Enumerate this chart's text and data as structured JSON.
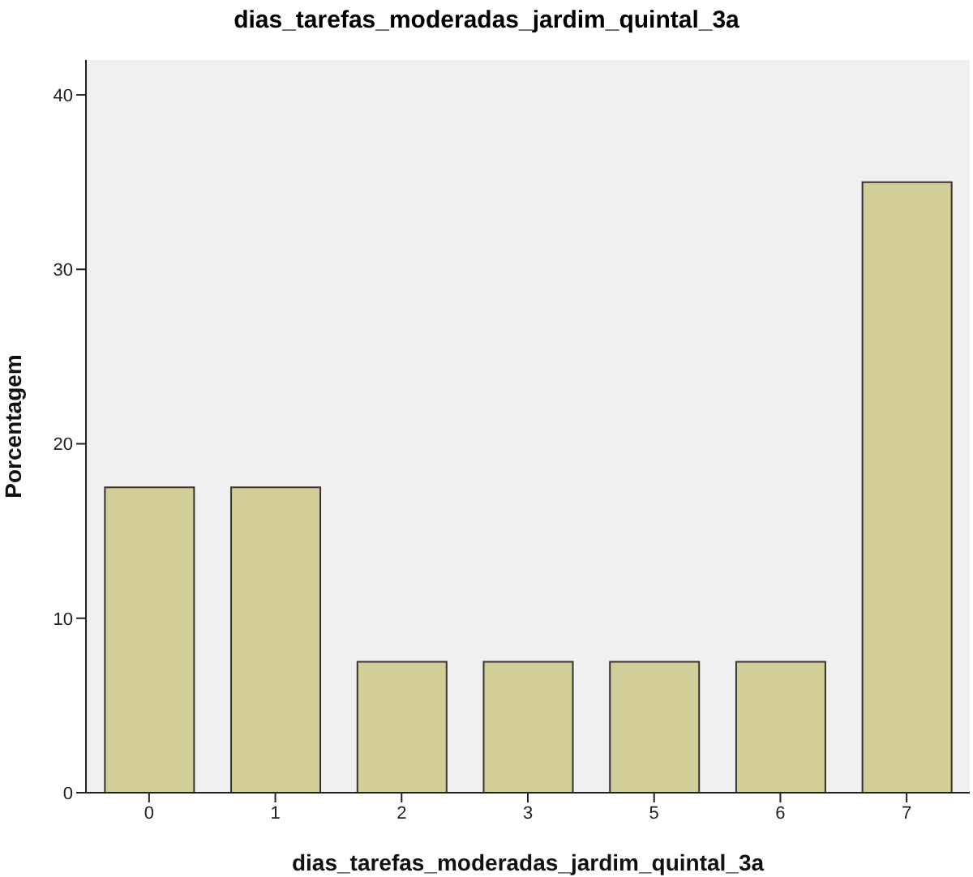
{
  "chart_data": {
    "type": "bar",
    "title": "dias_tarefas_moderadas_jardim_quintal_3a",
    "xlabel": "dias_tarefas_moderadas_jardim_quintal_3a",
    "ylabel": "Porcentagem",
    "categories": [
      "0",
      "1",
      "2",
      "3",
      "5",
      "6",
      "7"
    ],
    "values": [
      17.5,
      17.5,
      7.5,
      7.5,
      7.5,
      7.5,
      35
    ],
    "color": "#d3ce97",
    "ylim": [
      0,
      42
    ],
    "yticks": [
      0,
      10,
      20,
      30,
      40
    ],
    "grid": false
  }
}
